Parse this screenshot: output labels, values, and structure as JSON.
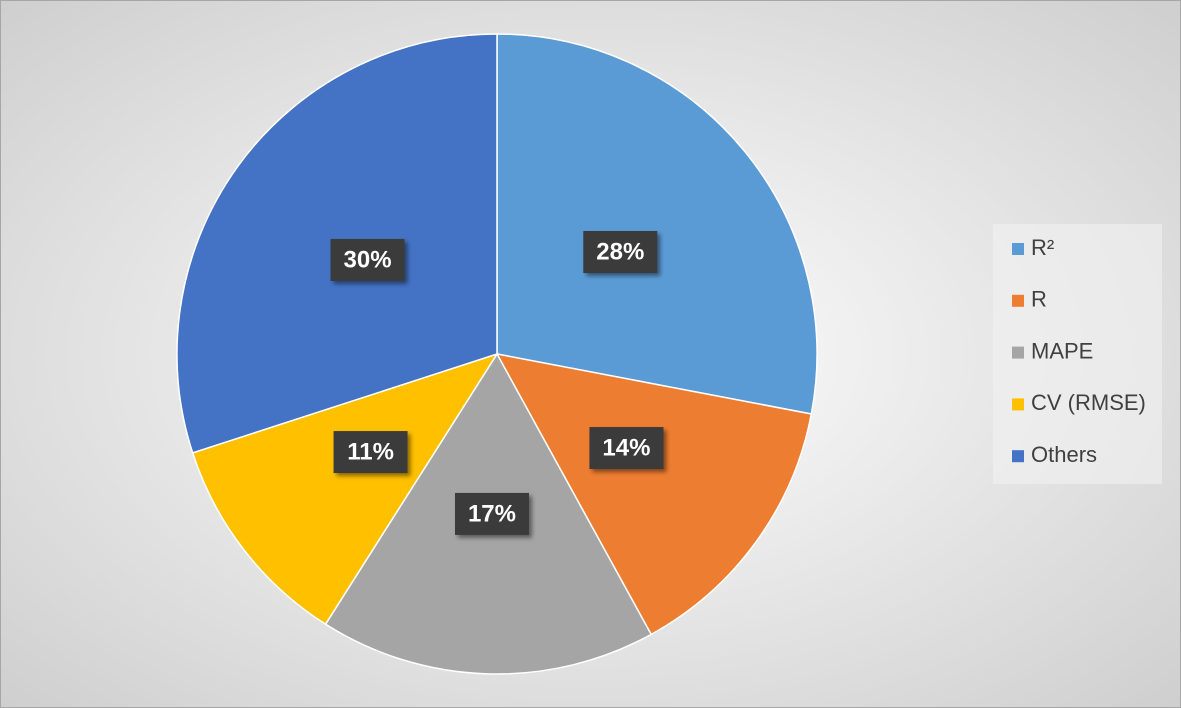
{
  "chart_data": {
    "type": "pie",
    "categories": [
      "R²",
      "R",
      "MAPE",
      "CV (RMSE)",
      "Others"
    ],
    "values": [
      28,
      14,
      17,
      11,
      30
    ],
    "value_labels": [
      "28%",
      "14%",
      "17%",
      "11%",
      "30%"
    ],
    "colors": [
      "#5B9BD5",
      "#ED7D31",
      "#A5A5A5",
      "#FFC000",
      "#4472C4"
    ],
    "legend": "right"
  }
}
